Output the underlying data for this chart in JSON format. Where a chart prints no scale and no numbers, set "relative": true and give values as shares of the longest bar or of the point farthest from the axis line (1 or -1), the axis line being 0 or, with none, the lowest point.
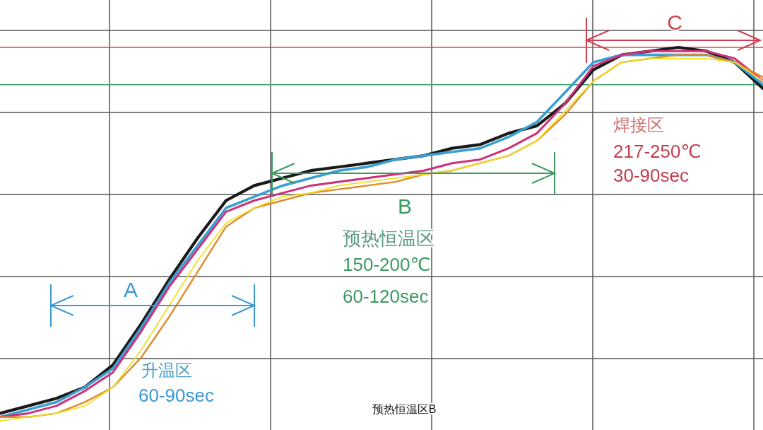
{
  "chart_data": {
    "type": "line",
    "relative": true,
    "grid": true,
    "marker": "none",
    "line_style": "solid",
    "categories": [
      null,
      null,
      null,
      null,
      null,
      null,
      null,
      null,
      null,
      null,
      null,
      null,
      null,
      null,
      null,
      null,
      null,
      null,
      null,
      null,
      null,
      null,
      null,
      null,
      null,
      null,
      null,
      null
    ],
    "series": [
      {
        "color": "#1a1a1a",
        "values": [
          0.02,
          0.04,
          0.06,
          0.09,
          0.15,
          0.26,
          0.38,
          0.49,
          0.59,
          0.63,
          0.65,
          0.67,
          0.68,
          0.69,
          0.7,
          0.71,
          0.73,
          0.74,
          0.77,
          0.79,
          0.85,
          0.94,
          0.98,
          0.99,
          1.0,
          0.99,
          0.96,
          0.89
        ]
      },
      {
        "color": "#3aa0d0",
        "values": [
          0.01,
          0.03,
          0.05,
          0.09,
          0.14,
          0.25,
          0.37,
          0.47,
          0.57,
          0.6,
          0.63,
          0.65,
          0.67,
          0.68,
          0.7,
          0.71,
          0.72,
          0.73,
          0.76,
          0.8,
          0.88,
          0.96,
          0.98,
          0.98,
          0.98,
          0.98,
          0.96,
          0.9
        ]
      },
      {
        "color": "#d0307a",
        "values": [
          0.01,
          0.02,
          0.04,
          0.08,
          0.13,
          0.24,
          0.36,
          0.46,
          0.56,
          0.59,
          0.61,
          0.63,
          0.64,
          0.65,
          0.66,
          0.67,
          0.69,
          0.7,
          0.73,
          0.77,
          0.85,
          0.95,
          0.98,
          0.99,
          0.99,
          0.99,
          0.97,
          0.91
        ]
      },
      {
        "color": "#e08a2a",
        "values": [
          0.01,
          0.01,
          0.02,
          0.05,
          0.09,
          0.17,
          0.28,
          0.4,
          0.52,
          0.57,
          0.59,
          0.61,
          0.62,
          0.63,
          0.64,
          0.66,
          0.67,
          0.69,
          0.71,
          0.75,
          0.82,
          0.91,
          0.96,
          0.97,
          0.98,
          0.98,
          0.96,
          0.92
        ]
      },
      {
        "color": "#f0e020",
        "values": [
          0.0,
          0.01,
          0.02,
          0.04,
          0.09,
          0.19,
          0.31,
          0.43,
          0.53,
          0.57,
          0.6,
          0.61,
          0.63,
          0.64,
          0.65,
          0.66,
          0.67,
          0.69,
          0.71,
          0.75,
          0.83,
          0.91,
          0.96,
          0.97,
          0.97,
          0.97,
          0.96,
          0.91
        ]
      }
    ],
    "ref_lines": [
      {
        "axis": "y",
        "value": 1.0,
        "color": "#e04050"
      },
      {
        "axis": "y",
        "value": 0.9,
        "color": "#40a070"
      }
    ],
    "annotations": [
      "A",
      "升温区",
      "60-90sec",
      "B",
      "预热恒温区",
      "150-200℃",
      "60-120sec",
      "C",
      "焊接区",
      "217-250℃",
      "30-90sec",
      "预热恒温区B"
    ]
  }
}
